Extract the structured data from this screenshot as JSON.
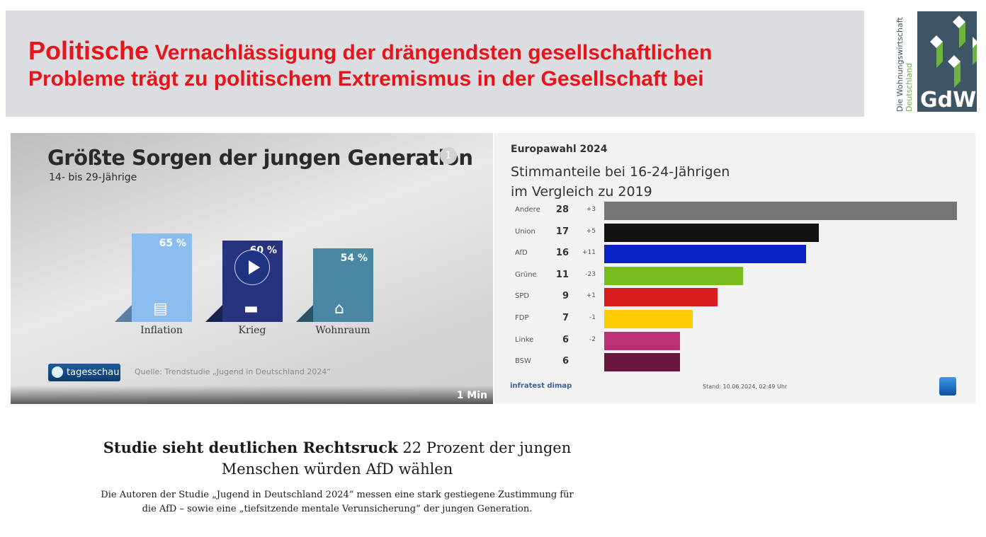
{
  "header": {
    "title_first_word": "Politische",
    "title_rest_line1": "Vernachlässigung der drängendsten gesellschaftlichen",
    "title_line2": "Probleme trägt zu politischem Extremismus in der Gesellschaft bei",
    "title_color": "#e8141a"
  },
  "logo": {
    "text": "GdW",
    "tagline1": "Die Wohnungswirtschaft",
    "tagline2": "Deutschland"
  },
  "video": {
    "channel": "tagesschau",
    "source": "Quelle: Trendstudie „Jugend in Deutschland 2024“",
    "duration": "1 Min",
    "play_icon": "play-icon"
  },
  "right_panel": {
    "brand": "infratest dimap",
    "stand": "Stand:  10.06.2024, 02:49 Uhr"
  },
  "article": {
    "headline_bold": "Studie sieht deutlichen Rechtsruck",
    "headline_rest": "22 Prozent der jungen Menschen würden AfD wählen",
    "body": "Die Autoren der Studie „Jugend in Deutschland 2024“ messen eine stark gestiegene Zustimmung für die AfD – sowie eine „tiefsitzende mentale Verunsicherung“ der jungen Generation."
  },
  "chart_data": [
    {
      "type": "bar",
      "title": "Größte Sorgen der jungen Generation",
      "subtitle": "14- bis 29-Jährige",
      "categories": [
        "Inflation",
        "Krieg",
        "Wohnraum"
      ],
      "values": [
        65,
        60,
        54
      ],
      "value_labels": [
        "65 %",
        "60 %",
        "54 %"
      ],
      "colors": [
        "#8bbdf0",
        "#27337e",
        "#4a87a3"
      ],
      "icons": [
        "money-icon",
        "tank-icon",
        "house-icon"
      ]
    },
    {
      "type": "bar",
      "orientation": "horizontal",
      "title": "Europawahl 2024",
      "subtitle_line1": "Stimmanteile bei 16-24-Jährigen",
      "subtitle_line2": "im Vergleich zu 2019",
      "categories": [
        "Andere",
        "Union",
        "AfD",
        "Grüne",
        "SPD",
        "FDP",
        "Linke",
        "BSW"
      ],
      "values": [
        28,
        17,
        16,
        11,
        9,
        7,
        6,
        6
      ],
      "changes": [
        "+3",
        "+5",
        "+11",
        "-23",
        "+1",
        "-1",
        "-2",
        ""
      ],
      "colors": [
        "#767676",
        "#121212",
        "#0a22c4",
        "#78bc1e",
        "#d81e1e",
        "#ffcc00",
        "#be3075",
        "#6a1740"
      ]
    }
  ]
}
